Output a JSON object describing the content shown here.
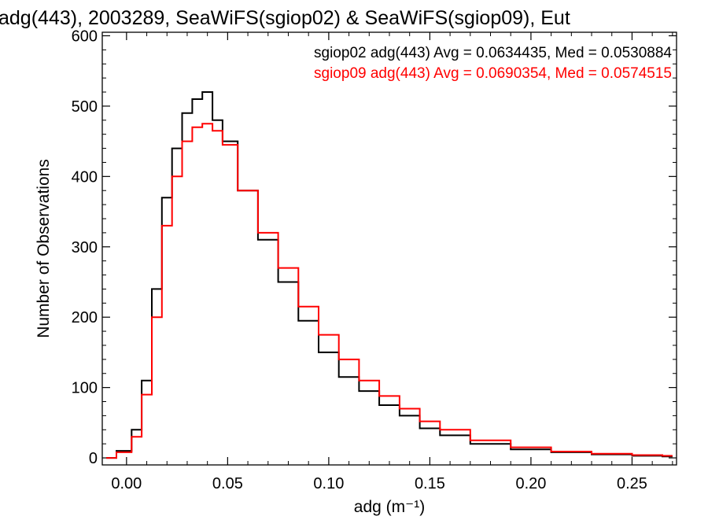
{
  "title": "adg(443), 2003289, SeaWiFS(sgiop02) & SeaWiFS(sgiop09), Eut",
  "chart_data": {
    "type": "histogram",
    "title": "adg(443), 2003289, SeaWiFS(sgiop02) & SeaWiFS(sgiop09), Eut",
    "xlabel": "adg (m⁻¹)",
    "ylabel": "Number of Observations",
    "xlim": [
      -0.012,
      0.272
    ],
    "ylim": [
      -10,
      605
    ],
    "x_ticks": [
      0.0,
      0.05,
      0.1,
      0.15,
      0.2,
      0.25
    ],
    "x_tick_labels": [
      "0.00",
      "0.05",
      "0.10",
      "0.15",
      "0.20",
      "0.25"
    ],
    "y_ticks": [
      0,
      100,
      200,
      300,
      400,
      500,
      600
    ],
    "y_tick_labels": [
      "0",
      "100",
      "200",
      "300",
      "400",
      "500",
      "600"
    ],
    "grid": false,
    "legend_position": "top-right",
    "series": [
      {
        "name": "sgiop02",
        "label": "sgiop02 adg(443) Avg = 0.0634435, Med = 0.0530884",
        "color": "#000000",
        "x": [
          -0.01,
          0.0,
          0.005,
          0.01,
          0.015,
          0.02,
          0.025,
          0.03,
          0.035,
          0.04,
          0.045,
          0.05,
          0.06,
          0.07,
          0.08,
          0.09,
          0.1,
          0.11,
          0.12,
          0.13,
          0.14,
          0.15,
          0.16,
          0.18,
          0.2,
          0.22,
          0.24,
          0.26,
          0.27
        ],
        "y": [
          0,
          10,
          40,
          110,
          240,
          370,
          440,
          490,
          510,
          520,
          480,
          450,
          380,
          310,
          250,
          195,
          150,
          115,
          95,
          75,
          60,
          42,
          32,
          20,
          12,
          8,
          5,
          3,
          2
        ]
      },
      {
        "name": "sgiop09",
        "label": "sgiop09 adg(443) Avg = 0.0690354, Med = 0.0574515",
        "color": "#ff0000",
        "x": [
          -0.01,
          0.0,
          0.005,
          0.01,
          0.015,
          0.02,
          0.025,
          0.03,
          0.035,
          0.04,
          0.045,
          0.05,
          0.06,
          0.07,
          0.08,
          0.09,
          0.1,
          0.11,
          0.12,
          0.13,
          0.14,
          0.15,
          0.16,
          0.18,
          0.2,
          0.22,
          0.24,
          0.26,
          0.27
        ],
        "y": [
          0,
          8,
          30,
          90,
          200,
          330,
          400,
          450,
          470,
          475,
          465,
          445,
          380,
          320,
          270,
          215,
          175,
          140,
          110,
          88,
          70,
          52,
          40,
          25,
          15,
          9,
          6,
          4,
          3
        ]
      }
    ]
  }
}
